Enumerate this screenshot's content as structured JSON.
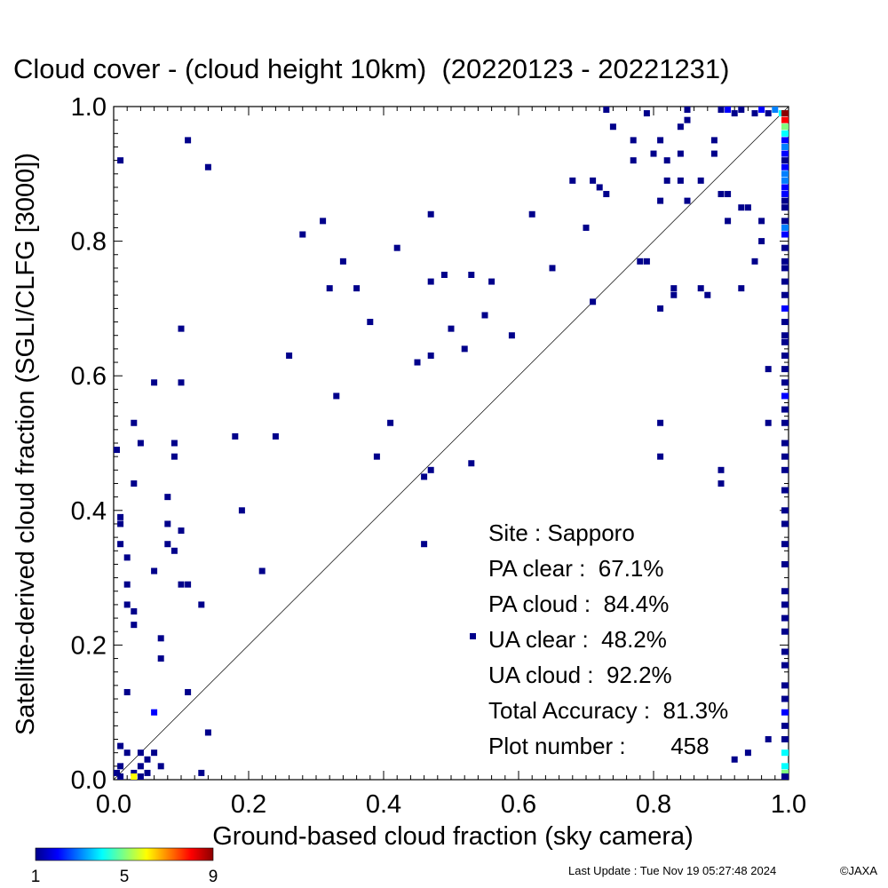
{
  "chart_data": {
    "type": "heatmap",
    "title": "Cloud cover - (cloud height 10km)  (20220123 - 20221231)",
    "xlabel": "Ground-based cloud fraction (sky camera)",
    "ylabel": "Satellite-derived cloud fraction (SGLI/CLFG [3000])",
    "xlim": [
      0,
      1
    ],
    "ylim": [
      0,
      1
    ],
    "xticks": [
      "0.0",
      "0.2",
      "0.4",
      "0.6",
      "0.8",
      "1.0"
    ],
    "yticks": [
      "0.0",
      "0.2",
      "0.4",
      "0.6",
      "0.8",
      "1.0"
    ],
    "reference_line": "y = x",
    "stats": [
      {
        "label": "Site : Sapporo"
      },
      {
        "label": "PA clear :  67.1%"
      },
      {
        "label": "PA cloud :  84.4%"
      },
      {
        "label": "UA clear :  48.2%"
      },
      {
        "label": "UA cloud :  92.2%"
      },
      {
        "label": "Total Accuracy :  81.3%"
      },
      {
        "label": "Plot number :       458"
      }
    ],
    "colorbar": {
      "ticks": [
        "1",
        "5",
        "9"
      ],
      "min": 1,
      "max": 9,
      "colors": [
        "#00008b",
        "#0000ff",
        "#0080ff",
        "#00ffff",
        "#80ff80",
        "#ffff00",
        "#ff8000",
        "#ff0000",
        "#8b0000"
      ]
    },
    "points": [
      [
        0.01,
        0.92,
        1
      ],
      [
        0.11,
        0.95,
        1
      ],
      [
        0.14,
        0.91,
        1
      ],
      [
        0.0,
        0.49,
        1
      ],
      [
        0.01,
        0.39,
        1
      ],
      [
        0.01,
        0.38,
        1
      ],
      [
        0.01,
        0.35,
        1
      ],
      [
        0.02,
        0.33,
        1
      ],
      [
        0.02,
        0.29,
        1
      ],
      [
        0.02,
        0.26,
        1
      ],
      [
        0.03,
        0.25,
        1
      ],
      [
        0.03,
        0.23,
        1
      ],
      [
        0.03,
        0.44,
        1
      ],
      [
        0.03,
        0.53,
        1
      ],
      [
        0.04,
        0.5,
        1
      ],
      [
        0.02,
        0.13,
        1
      ],
      [
        0.06,
        0.1,
        2
      ],
      [
        0.07,
        0.21,
        1
      ],
      [
        0.07,
        0.18,
        1
      ],
      [
        0.06,
        0.31,
        1
      ],
      [
        0.06,
        0.59,
        1
      ],
      [
        0.08,
        0.42,
        1
      ],
      [
        0.08,
        0.38,
        1
      ],
      [
        0.08,
        0.35,
        1
      ],
      [
        0.09,
        0.34,
        1
      ],
      [
        0.09,
        0.48,
        1
      ],
      [
        0.09,
        0.5,
        1
      ],
      [
        0.1,
        0.37,
        1
      ],
      [
        0.1,
        0.29,
        1
      ],
      [
        0.11,
        0.29,
        1
      ],
      [
        0.1,
        0.59,
        1
      ],
      [
        0.1,
        0.67,
        1
      ],
      [
        0.11,
        0.13,
        1
      ],
      [
        0.13,
        0.26,
        1
      ],
      [
        0.14,
        0.07,
        1
      ],
      [
        0.13,
        0.01,
        1
      ],
      [
        0.01,
        0.05,
        1
      ],
      [
        0.01,
        0.02,
        1
      ],
      [
        0.02,
        0.04,
        1
      ],
      [
        0.03,
        0.01,
        1
      ],
      [
        0.04,
        0.02,
        1
      ],
      [
        0.04,
        0.04,
        1
      ],
      [
        0.05,
        0.03,
        1
      ],
      [
        0.06,
        0.04,
        1
      ],
      [
        0.07,
        0.02,
        1
      ],
      [
        0.05,
        0.01,
        1
      ],
      [
        0.03,
        0.0,
        6
      ],
      [
        0.04,
        0.0,
        1
      ],
      [
        0.0,
        0.01,
        1
      ],
      [
        0.01,
        0.0,
        1
      ],
      [
        0.18,
        0.51,
        1
      ],
      [
        0.19,
        0.4,
        1
      ],
      [
        0.22,
        0.31,
        1
      ],
      [
        0.24,
        0.51,
        1
      ],
      [
        0.26,
        0.63,
        1
      ],
      [
        0.28,
        0.81,
        1
      ],
      [
        0.31,
        0.83,
        1
      ],
      [
        0.32,
        0.73,
        1
      ],
      [
        0.33,
        0.57,
        1
      ],
      [
        0.34,
        0.77,
        1
      ],
      [
        0.36,
        0.73,
        1
      ],
      [
        0.38,
        0.68,
        1
      ],
      [
        0.39,
        0.48,
        1
      ],
      [
        0.41,
        0.53,
        1
      ],
      [
        0.42,
        0.79,
        1
      ],
      [
        0.45,
        0.62,
        1
      ],
      [
        0.46,
        0.45,
        1
      ],
      [
        0.46,
        0.35,
        1
      ],
      [
        0.47,
        0.84,
        1
      ],
      [
        0.47,
        0.74,
        1
      ],
      [
        0.47,
        0.63,
        1
      ],
      [
        0.47,
        0.46,
        1
      ],
      [
        0.49,
        0.75,
        1
      ],
      [
        0.5,
        0.67,
        1
      ],
      [
        0.52,
        0.64,
        1
      ],
      [
        0.53,
        0.75,
        1
      ],
      [
        0.53,
        0.47,
        1
      ],
      [
        0.55,
        0.69,
        1
      ],
      [
        0.56,
        0.74,
        1
      ],
      [
        0.59,
        0.66,
        1
      ],
      [
        0.62,
        0.84,
        1
      ],
      [
        0.65,
        0.76,
        1
      ],
      [
        0.68,
        0.89,
        1
      ],
      [
        0.7,
        0.82,
        1
      ],
      [
        0.71,
        0.71,
        1
      ],
      [
        0.71,
        0.89,
        1
      ],
      [
        0.72,
        0.88,
        1
      ],
      [
        0.73,
        0.87,
        1
      ],
      [
        0.73,
        1.0,
        1
      ],
      [
        0.74,
        0.97,
        1
      ],
      [
        0.77,
        0.95,
        1
      ],
      [
        0.77,
        0.92,
        1
      ],
      [
        0.78,
        0.77,
        1
      ],
      [
        0.79,
        0.77,
        1
      ],
      [
        0.79,
        0.99,
        1
      ],
      [
        0.8,
        0.93,
        1
      ],
      [
        0.81,
        0.7,
        1
      ],
      [
        0.81,
        0.86,
        1
      ],
      [
        0.81,
        0.95,
        1
      ],
      [
        0.81,
        0.53,
        1
      ],
      [
        0.81,
        0.48,
        1
      ],
      [
        0.82,
        0.89,
        1
      ],
      [
        0.82,
        0.92,
        1
      ],
      [
        0.83,
        0.72,
        1
      ],
      [
        0.83,
        0.73,
        1
      ],
      [
        0.84,
        0.89,
        1
      ],
      [
        0.84,
        0.97,
        1
      ],
      [
        0.85,
        0.98,
        1
      ],
      [
        0.85,
        0.86,
        1
      ],
      [
        0.84,
        0.93,
        1
      ],
      [
        0.85,
        1.0,
        1
      ],
      [
        0.87,
        0.89,
        1
      ],
      [
        0.87,
        0.73,
        1
      ],
      [
        0.88,
        0.72,
        1
      ],
      [
        0.89,
        0.93,
        1
      ],
      [
        0.89,
        0.95,
        1
      ],
      [
        0.9,
        0.46,
        1
      ],
      [
        0.9,
        0.44,
        1
      ],
      [
        0.9,
        0.87,
        1
      ],
      [
        0.91,
        0.87,
        1
      ],
      [
        0.91,
        0.83,
        1
      ],
      [
        0.92,
        0.03,
        1
      ],
      [
        0.93,
        0.73,
        1
      ],
      [
        0.93,
        0.85,
        1
      ],
      [
        0.94,
        0.04,
        1
      ],
      [
        0.94,
        0.85,
        1
      ],
      [
        0.95,
        0.77,
        1
      ],
      [
        0.96,
        0.8,
        1
      ],
      [
        0.96,
        0.83,
        1
      ],
      [
        0.97,
        0.61,
        1
      ],
      [
        0.97,
        0.06,
        1
      ],
      [
        0.97,
        0.53,
        1
      ],
      [
        0.9,
        1.0,
        1
      ],
      [
        0.91,
        1.0,
        2
      ],
      [
        0.92,
        0.99,
        1
      ],
      [
        0.93,
        1.0,
        1
      ],
      [
        0.95,
        0.99,
        1
      ],
      [
        0.96,
        1.0,
        2
      ],
      [
        0.97,
        0.99,
        1
      ],
      [
        0.98,
        1.0,
        3
      ],
      [
        0.99,
        0.99,
        4
      ]
    ],
    "edge_column": {
      "x": 1.0,
      "cells": [
        [
          0.99,
          9
        ],
        [
          0.98,
          8
        ],
        [
          0.97,
          5
        ],
        [
          0.96,
          4
        ],
        [
          0.95,
          2
        ],
        [
          0.94,
          3
        ],
        [
          0.93,
          2
        ],
        [
          0.92,
          1
        ],
        [
          0.91,
          2
        ],
        [
          0.9,
          3
        ],
        [
          0.89,
          3
        ],
        [
          0.88,
          2
        ],
        [
          0.87,
          2
        ],
        [
          0.86,
          1
        ],
        [
          0.85,
          1
        ],
        [
          0.83,
          1
        ],
        [
          0.82,
          3
        ],
        [
          0.81,
          2
        ],
        [
          0.79,
          1
        ],
        [
          0.77,
          1
        ],
        [
          0.76,
          1
        ],
        [
          0.74,
          1
        ],
        [
          0.72,
          1
        ],
        [
          0.7,
          2
        ],
        [
          0.68,
          1
        ],
        [
          0.66,
          1
        ],
        [
          0.65,
          1
        ],
        [
          0.63,
          1
        ],
        [
          0.61,
          1
        ],
        [
          0.59,
          1
        ],
        [
          0.57,
          2
        ],
        [
          0.55,
          1
        ],
        [
          0.53,
          1
        ],
        [
          0.5,
          1
        ],
        [
          0.48,
          1
        ],
        [
          0.46,
          1
        ],
        [
          0.43,
          1
        ],
        [
          0.4,
          1
        ],
        [
          0.38,
          1
        ],
        [
          0.35,
          1
        ],
        [
          0.32,
          1
        ],
        [
          0.28,
          1
        ],
        [
          0.26,
          1
        ],
        [
          0.24,
          1
        ],
        [
          0.22,
          1
        ],
        [
          0.19,
          1
        ],
        [
          0.17,
          1
        ],
        [
          0.14,
          1
        ],
        [
          0.12,
          1
        ],
        [
          0.1,
          2
        ],
        [
          0.08,
          1
        ],
        [
          0.06,
          1
        ],
        [
          0.04,
          4
        ],
        [
          0.02,
          4
        ],
        [
          0.01,
          5
        ],
        [
          0.0,
          1
        ]
      ]
    }
  },
  "footer": {
    "last_update": "Last Update : Tue Nov 19 05:27:48 2024",
    "copyright": "©JAXA"
  }
}
